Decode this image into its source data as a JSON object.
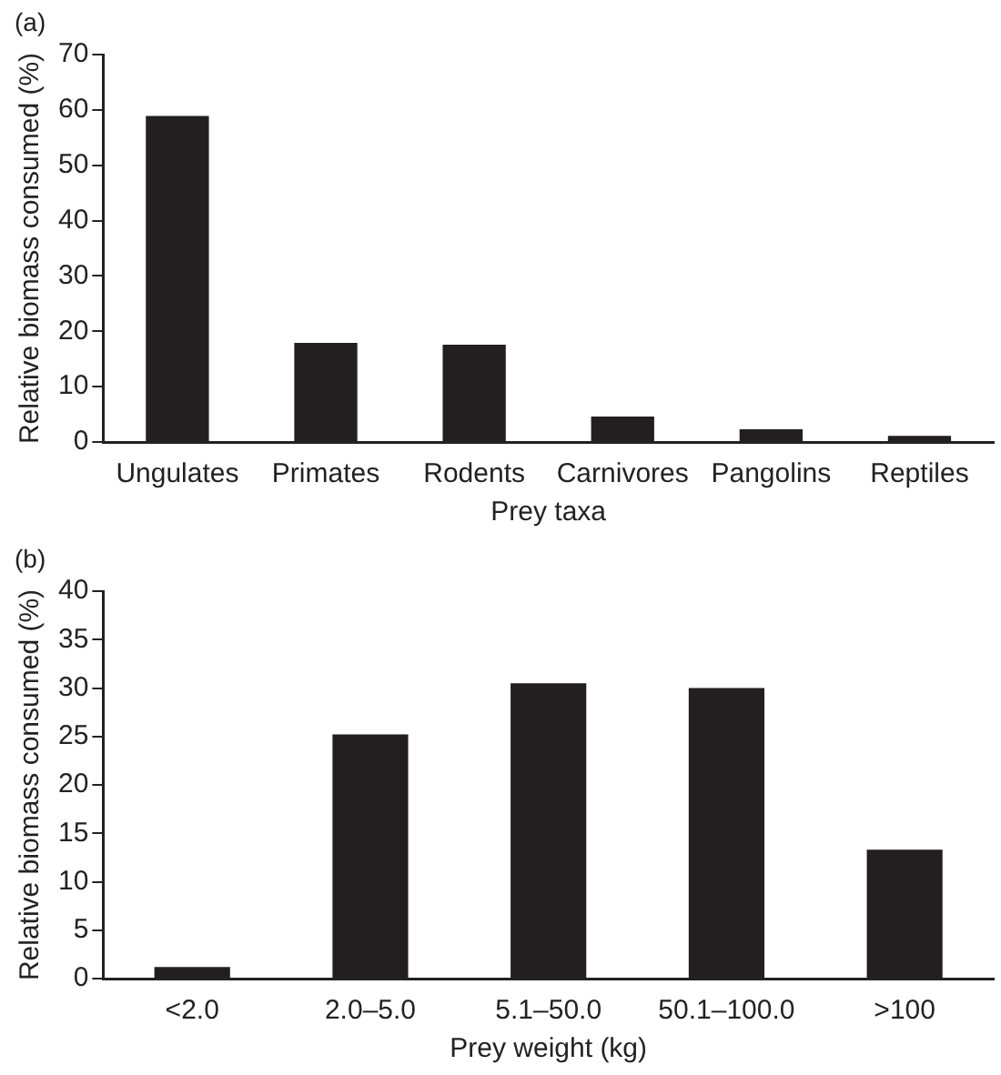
{
  "chart_data": [
    {
      "type": "bar",
      "title": "(a)",
      "xlabel": "Prey taxa",
      "ylabel": "Relative biomass consumed (%)",
      "categories": [
        "Ungulates",
        "Primates",
        "Rodents",
        "Carnivores",
        "Pangolins",
        "Reptiles"
      ],
      "values": [
        58.9,
        17.9,
        17.6,
        4.6,
        2.3,
        1.1
      ],
      "color": "#231f20",
      "ylim": [
        0,
        70
      ],
      "yticks": [
        0,
        10,
        20,
        30,
        40,
        50,
        60,
        70
      ],
      "grid": false,
      "legend": false
    },
    {
      "type": "bar",
      "title": "(b)",
      "xlabel": "Prey weight (kg)",
      "ylabel": "Relative biomass consumed (%)",
      "categories": [
        "<2.0",
        "2.0–5.0",
        "5.1–50.0",
        "50.1–100.0",
        ">100"
      ],
      "values": [
        1.2,
        25.2,
        30.5,
        30.0,
        13.3
      ],
      "color": "#231f20",
      "ylim": [
        0,
        40
      ],
      "yticks": [
        0,
        5,
        10,
        15,
        20,
        25,
        30,
        35,
        40
      ],
      "grid": false,
      "legend": false
    }
  ]
}
